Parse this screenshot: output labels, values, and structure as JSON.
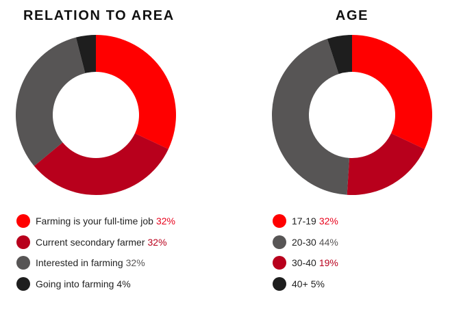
{
  "colors": {
    "red": "#ff0000",
    "dark_red": "#b8001c",
    "gray": "#575555",
    "black": "#1e1e1e"
  },
  "chart_data": [
    {
      "type": "pie",
      "title": "RELATION TO AREA",
      "slices": [
        {
          "label": "Farming is your full-time job",
          "value": 32,
          "display": "32%",
          "color": "#ff0000",
          "pct_color": "#e8001a"
        },
        {
          "label": "Current secondary farmer",
          "value": 32,
          "display": "32%",
          "color": "#b8001c",
          "pct_color": "#b8001c"
        },
        {
          "label": "Interested in farming",
          "value": 32,
          "display": "32%",
          "color": "#575555",
          "pct_color": "#575555"
        },
        {
          "label": "Going into farming",
          "value": 4,
          "display": "4%",
          "color": "#1e1e1e",
          "pct_color": "#1e1e1e"
        }
      ]
    },
    {
      "type": "pie",
      "title": "AGE",
      "slices": [
        {
          "label": "17-19",
          "value": 32,
          "display": "32%",
          "color": "#ff0000",
          "pct_color": "#e8001a"
        },
        {
          "label": "30-40",
          "value": 19,
          "display": "19%",
          "color": "#b8001c",
          "pct_color": "#b8001c"
        },
        {
          "label": "20-30",
          "value": 44,
          "display": "44%",
          "color": "#575555",
          "pct_color": "#575555"
        },
        {
          "label": "40+",
          "value": 5,
          "display": "5%",
          "color": "#1e1e1e",
          "pct_color": "#1e1e1e"
        }
      ],
      "legend_order": [
        0,
        2,
        1,
        3
      ]
    }
  ]
}
